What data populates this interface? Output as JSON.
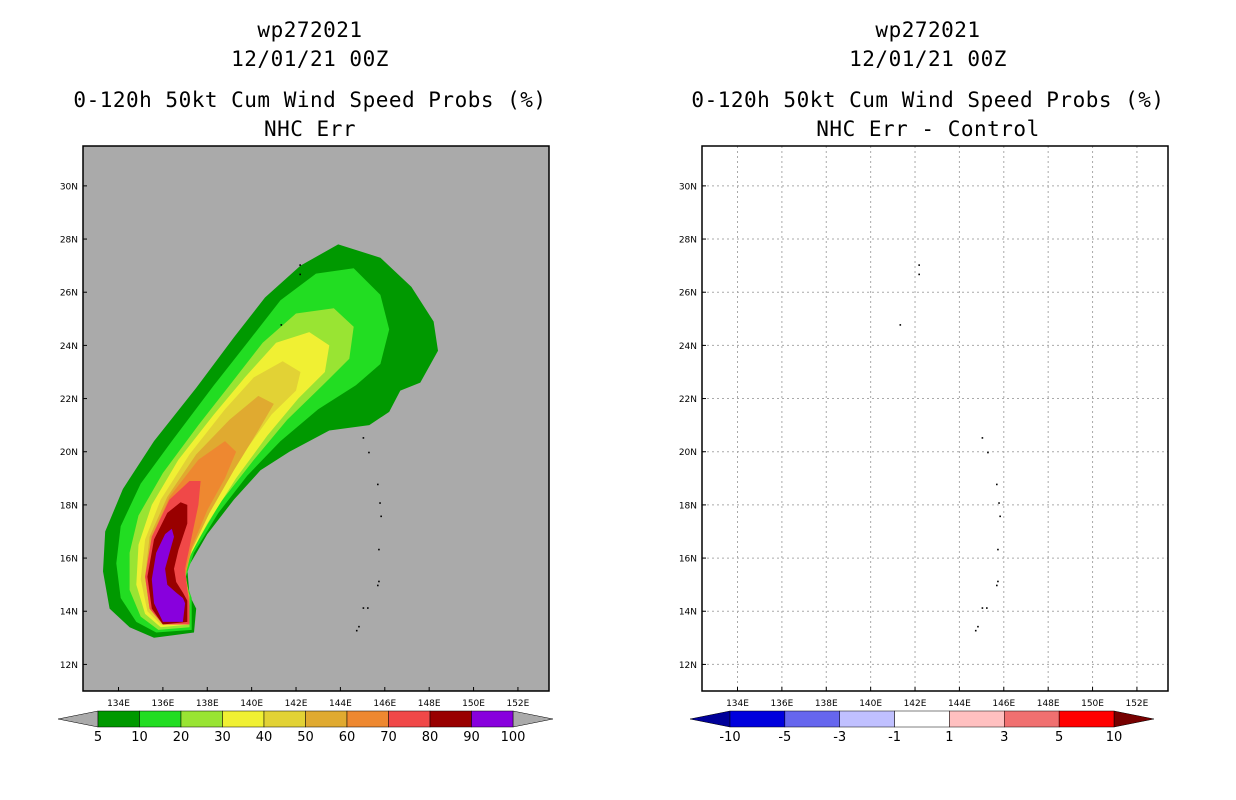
{
  "left_panel": {
    "title_line1": "wp272021",
    "title_line2": "12/01/21 00Z",
    "title_line3": "0-120h 50kt Cum Wind Speed Probs (%)",
    "title_line4": "NHC Err"
  },
  "right_panel": {
    "title_line1": "wp272021",
    "title_line2": "12/01/21 00Z",
    "title_line3": "0-120h 50kt Cum Wind Speed Probs (%)",
    "title_line4": "NHC Err - Control"
  },
  "chart_data": [
    {
      "type": "heatmap",
      "title": "0-120h 50kt Cum Wind Speed Probs (%) NHC Err",
      "xlabel": "",
      "ylabel": "",
      "xlim": [
        132.4,
        153.4
      ],
      "ylim": [
        11.0,
        31.5
      ],
      "x_ticks": [
        134,
        136,
        138,
        140,
        142,
        144,
        146,
        148,
        150,
        152
      ],
      "x_tick_labels": [
        "134E",
        "136E",
        "138E",
        "140E",
        "142E",
        "144E",
        "146E",
        "148E",
        "150E",
        "152E"
      ],
      "y_ticks": [
        12,
        14,
        16,
        18,
        20,
        22,
        24,
        26,
        28,
        30
      ],
      "y_tick_labels": [
        "12N",
        "14N",
        "16N",
        "18N",
        "20N",
        "22N",
        "24N",
        "26N",
        "28N",
        "30N"
      ],
      "grid": false,
      "background_color": "#aaaaaa",
      "colorbar": {
        "labels": [
          "5",
          "10",
          "20",
          "30",
          "40",
          "50",
          "60",
          "70",
          "80",
          "90",
          "100"
        ],
        "colors": [
          "#009900",
          "#22dd22",
          "#99e433",
          "#f0f033",
          "#e2d235",
          "#e0aa30",
          "#ee8830",
          "#f04848",
          "#990000",
          "#8800dd"
        ],
        "end_colors": [
          "#aaaaaa",
          "#aaaaaa"
        ]
      },
      "contours": [
        {
          "level": 5,
          "color": "#009900",
          "points": [
            [
              135.6,
              13.0
            ],
            [
              134.5,
              13.4
            ],
            [
              133.6,
              14.1
            ],
            [
              133.3,
              15.5
            ],
            [
              133.4,
              17.0
            ],
            [
              134.2,
              18.6
            ],
            [
              135.6,
              20.4
            ],
            [
              137.5,
              22.4
            ],
            [
              139.2,
              24.3
            ],
            [
              140.6,
              25.8
            ],
            [
              142.2,
              27.0
            ],
            [
              143.9,
              27.8
            ],
            [
              145.8,
              27.3
            ],
            [
              147.2,
              26.2
            ],
            [
              148.2,
              24.9
            ],
            [
              148.4,
              23.8
            ],
            [
              147.6,
              22.6
            ],
            [
              146.7,
              22.3
            ],
            [
              146.2,
              21.5
            ],
            [
              145.3,
              21.0
            ],
            [
              143.5,
              20.8
            ],
            [
              141.7,
              20.0
            ],
            [
              140.4,
              19.3
            ],
            [
              139.2,
              18.2
            ],
            [
              138.0,
              16.9
            ],
            [
              137.1,
              15.6
            ],
            [
              137.2,
              14.6
            ],
            [
              137.5,
              14.1
            ],
            [
              137.4,
              13.2
            ]
          ]
        },
        {
          "level": 10,
          "color": "#22dd22",
          "points": [
            [
              135.7,
              13.2
            ],
            [
              134.8,
              13.6
            ],
            [
              134.1,
              14.5
            ],
            [
              133.9,
              15.8
            ],
            [
              134.1,
              17.2
            ],
            [
              135.0,
              18.8
            ],
            [
              136.4,
              20.4
            ],
            [
              138.3,
              22.5
            ],
            [
              139.9,
              24.2
            ],
            [
              141.3,
              25.7
            ],
            [
              142.9,
              26.7
            ],
            [
              144.6,
              26.9
            ],
            [
              145.8,
              25.9
            ],
            [
              146.2,
              24.6
            ],
            [
              145.8,
              23.3
            ],
            [
              144.7,
              22.5
            ],
            [
              143.0,
              21.6
            ],
            [
              141.3,
              20.4
            ],
            [
              139.8,
              19.1
            ],
            [
              138.5,
              17.7
            ],
            [
              137.4,
              16.2
            ],
            [
              137.0,
              15.2
            ],
            [
              137.3,
              14.5
            ],
            [
              137.3,
              13.3
            ]
          ]
        },
        {
          "level": 20,
          "color": "#99e433",
          "points": [
            [
              135.8,
              13.3
            ],
            [
              135.0,
              13.8
            ],
            [
              134.5,
              14.8
            ],
            [
              134.5,
              16.2
            ],
            [
              134.9,
              17.6
            ],
            [
              136.0,
              19.2
            ],
            [
              137.6,
              21.0
            ],
            [
              139.1,
              22.6
            ],
            [
              140.5,
              24.1
            ],
            [
              142.0,
              25.2
            ],
            [
              143.7,
              25.4
            ],
            [
              144.6,
              24.7
            ],
            [
              144.4,
              23.5
            ],
            [
              143.2,
              22.5
            ],
            [
              141.6,
              21.2
            ],
            [
              140.1,
              19.7
            ],
            [
              138.6,
              18.1
            ],
            [
              137.4,
              16.4
            ],
            [
              136.9,
              15.4
            ],
            [
              137.2,
              14.6
            ],
            [
              137.2,
              13.4
            ]
          ]
        },
        {
          "level": 30,
          "color": "#f0f033",
          "points": [
            [
              135.9,
              13.4
            ],
            [
              135.2,
              13.9
            ],
            [
              134.8,
              15.0
            ],
            [
              134.9,
              16.5
            ],
            [
              135.5,
              18.0
            ],
            [
              136.7,
              19.7
            ],
            [
              138.3,
              21.4
            ],
            [
              139.7,
              22.8
            ],
            [
              141.1,
              24.1
            ],
            [
              142.6,
              24.5
            ],
            [
              143.5,
              24.0
            ],
            [
              143.3,
              23.0
            ],
            [
              142.1,
              22.0
            ],
            [
              140.7,
              20.6
            ],
            [
              139.3,
              19.0
            ],
            [
              138.0,
              17.3
            ],
            [
              137.1,
              15.9
            ],
            [
              137.0,
              15.0
            ],
            [
              137.2,
              14.3
            ],
            [
              137.2,
              13.5
            ]
          ]
        },
        {
          "level": 40,
          "color": "#e2d235",
          "points": [
            [
              135.9,
              13.5
            ],
            [
              135.3,
              14.0
            ],
            [
              135.0,
              15.2
            ],
            [
              135.2,
              16.7
            ],
            [
              135.9,
              18.2
            ],
            [
              137.2,
              19.9
            ],
            [
              138.8,
              21.6
            ],
            [
              140.1,
              22.8
            ],
            [
              141.4,
              23.4
            ],
            [
              142.2,
              23.0
            ],
            [
              142.0,
              22.3
            ],
            [
              140.9,
              21.4
            ],
            [
              139.6,
              19.9
            ],
            [
              138.4,
              18.2
            ],
            [
              137.4,
              16.7
            ],
            [
              137.0,
              15.5
            ],
            [
              137.2,
              14.5
            ],
            [
              137.2,
              13.5
            ]
          ]
        },
        {
          "level": 50,
          "color": "#e0aa30",
          "points": [
            [
              136.0,
              13.5
            ],
            [
              135.4,
              14.1
            ],
            [
              135.2,
              15.3
            ],
            [
              135.4,
              16.8
            ],
            [
              136.2,
              18.3
            ],
            [
              137.5,
              19.9
            ],
            [
              139.0,
              21.2
            ],
            [
              140.3,
              22.1
            ],
            [
              141.0,
              21.8
            ],
            [
              140.3,
              20.8
            ],
            [
              139.2,
              19.3
            ],
            [
              138.1,
              17.7
            ],
            [
              137.3,
              16.3
            ],
            [
              137.0,
              15.3
            ],
            [
              137.2,
              14.5
            ],
            [
              137.2,
              13.5
            ]
          ]
        },
        {
          "level": 60,
          "color": "#ee8830",
          "points": [
            [
              136.0,
              13.5
            ],
            [
              135.4,
              14.1
            ],
            [
              135.2,
              15.3
            ],
            [
              135.5,
              16.8
            ],
            [
              136.3,
              18.3
            ],
            [
              137.6,
              19.7
            ],
            [
              138.8,
              20.4
            ],
            [
              139.3,
              20.0
            ],
            [
              138.8,
              19.0
            ],
            [
              138.0,
              17.8
            ],
            [
              137.3,
              16.4
            ],
            [
              137.0,
              15.4
            ],
            [
              137.2,
              14.5
            ],
            [
              137.2,
              13.5
            ]
          ]
        },
        {
          "level": 70,
          "color": "#f04848",
          "points": [
            [
              136.0,
              13.5
            ],
            [
              135.4,
              14.1
            ],
            [
              135.2,
              15.3
            ],
            [
              135.5,
              16.8
            ],
            [
              136.3,
              18.2
            ],
            [
              137.2,
              18.9
            ],
            [
              137.7,
              18.9
            ],
            [
              137.6,
              18.0
            ],
            [
              137.3,
              16.8
            ],
            [
              137.0,
              15.6
            ],
            [
              137.1,
              14.8
            ],
            [
              137.2,
              14.2
            ],
            [
              137.2,
              13.5
            ]
          ]
        },
        {
          "level": 80,
          "color": "#990000",
          "points": [
            [
              136.0,
              13.5
            ],
            [
              135.5,
              14.1
            ],
            [
              135.3,
              15.3
            ],
            [
              135.6,
              16.7
            ],
            [
              136.2,
              17.7
            ],
            [
              136.8,
              18.1
            ],
            [
              137.1,
              18.0
            ],
            [
              137.1,
              17.3
            ],
            [
              136.7,
              16.3
            ],
            [
              136.5,
              15.6
            ],
            [
              136.6,
              15.1
            ],
            [
              136.9,
              14.7
            ],
            [
              137.1,
              14.4
            ],
            [
              137.1,
              13.6
            ]
          ]
        },
        {
          "level": 90,
          "color": "#8800dd",
          "points": [
            [
              136.0,
              13.6
            ],
            [
              135.6,
              14.3
            ],
            [
              135.5,
              15.2
            ],
            [
              135.7,
              16.2
            ],
            [
              136.1,
              16.9
            ],
            [
              136.4,
              17.1
            ],
            [
              136.5,
              16.8
            ],
            [
              136.3,
              16.2
            ],
            [
              136.1,
              15.6
            ],
            [
              136.2,
              15.0
            ],
            [
              136.6,
              14.7
            ],
            [
              136.9,
              14.5
            ],
            [
              137.0,
              14.3
            ],
            [
              136.9,
              13.6
            ]
          ]
        }
      ]
    },
    {
      "type": "heatmap",
      "title": "0-120h 50kt Cum Wind Speed Probs (%) NHC Err - Control",
      "xlabel": "",
      "ylabel": "",
      "xlim": [
        132.4,
        153.4
      ],
      "ylim": [
        11.0,
        31.5
      ],
      "x_ticks": [
        134,
        136,
        138,
        140,
        142,
        144,
        146,
        148,
        150,
        152
      ],
      "x_tick_labels": [
        "134E",
        "136E",
        "138E",
        "140E",
        "142E",
        "144E",
        "146E",
        "148E",
        "150E",
        "152E"
      ],
      "y_ticks": [
        12,
        14,
        16,
        18,
        20,
        22,
        24,
        26,
        28,
        30
      ],
      "y_tick_labels": [
        "12N",
        "14N",
        "16N",
        "18N",
        "20N",
        "22N",
        "24N",
        "26N",
        "28N",
        "30N"
      ],
      "grid": true,
      "background_color": "#ffffff",
      "colorbar": {
        "labels": [
          "-10",
          "-5",
          "-3",
          "-1",
          "1",
          "3",
          "5",
          "10"
        ],
        "colors": [
          "#0000dd",
          "#6666ee",
          "#c0c0ff",
          "#ffffff",
          "#ffc0c0",
          "#f07070",
          "#ff0000"
        ],
        "end_colors": [
          "#000099",
          "#770000"
        ]
      },
      "contours": []
    }
  ]
}
